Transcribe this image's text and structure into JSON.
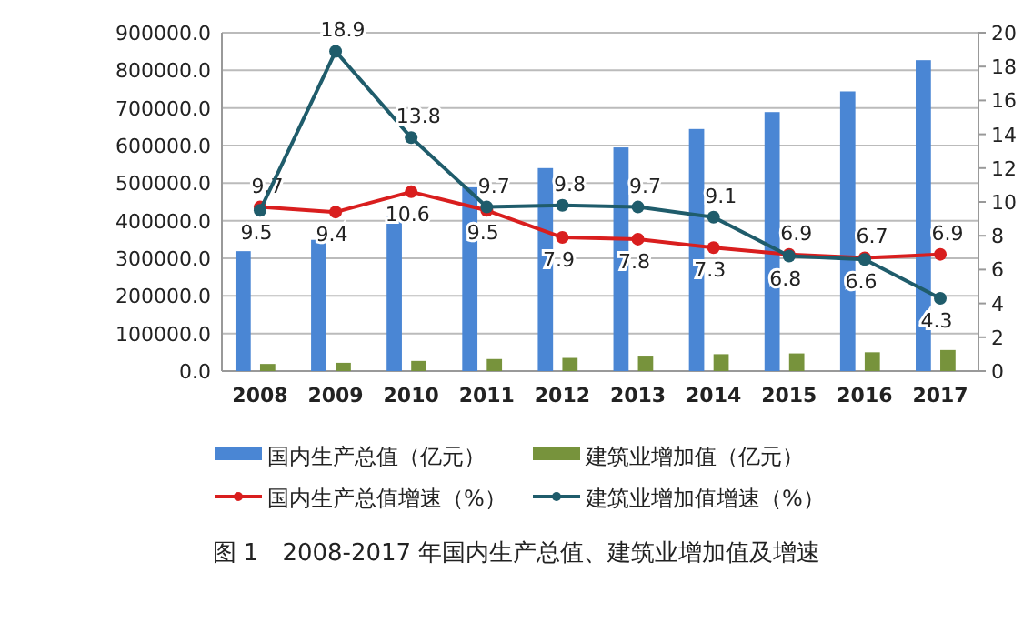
{
  "chart_data": {
    "type": "bar",
    "title": "图 1　2008-2017 年国内生产总值、建筑业增加值及增速",
    "categories": [
      "2008",
      "2009",
      "2010",
      "2011",
      "2012",
      "2013",
      "2014",
      "2015",
      "2016",
      "2017"
    ],
    "series": [
      {
        "name": "国内生产总值（亿元）",
        "color": "#4a86d4",
        "values": [
          319000,
          349000,
          413000,
          489000,
          540000,
          595000,
          644000,
          689000,
          744000,
          827000
        ]
      },
      {
        "name": "建筑业增加值（亿元）",
        "color": "#77933c",
        "values": [
          19000,
          22000,
          27000,
          32000,
          35000,
          41000,
          45000,
          47000,
          50000,
          56000
        ]
      },
      {
        "name": "国内生产总值增速（%）",
        "type": "line",
        "axis": "y2",
        "color": "#d91e1e",
        "marker": "circle",
        "data_labels": true,
        "values": [
          9.7,
          9.4,
          10.6,
          9.5,
          7.9,
          7.8,
          7.3,
          6.9,
          6.7,
          6.9
        ]
      },
      {
        "name": "建筑业增加值增速（%）",
        "type": "line",
        "axis": "y2",
        "color": "#1f5c6b",
        "marker": "circle",
        "data_labels": true,
        "values": [
          9.5,
          18.9,
          13.8,
          9.7,
          9.8,
          9.7,
          9.1,
          6.8,
          6.6,
          4.3
        ]
      }
    ],
    "ylim": [
      0,
      900000
    ],
    "yticks": [
      {
        "value": 0,
        "label": "0.0"
      },
      {
        "value": 100000,
        "label": "100000.0"
      },
      {
        "value": 200000,
        "label": "200000.0"
      },
      {
        "value": 300000,
        "label": "300000.0"
      },
      {
        "value": 400000,
        "label": "400000.0"
      },
      {
        "value": 500000,
        "label": "500000.0"
      },
      {
        "value": 600000,
        "label": "600000.0"
      },
      {
        "value": 700000,
        "label": "700000.0"
      },
      {
        "value": 800000,
        "label": "800000.0"
      },
      {
        "value": 900000,
        "label": "900000.0"
      }
    ],
    "y2lim": [
      0,
      20
    ],
    "y2ticks": [
      0,
      2,
      4,
      6,
      8,
      10,
      12,
      14,
      16,
      18,
      20
    ],
    "grid": "y",
    "legend": "bottom"
  }
}
